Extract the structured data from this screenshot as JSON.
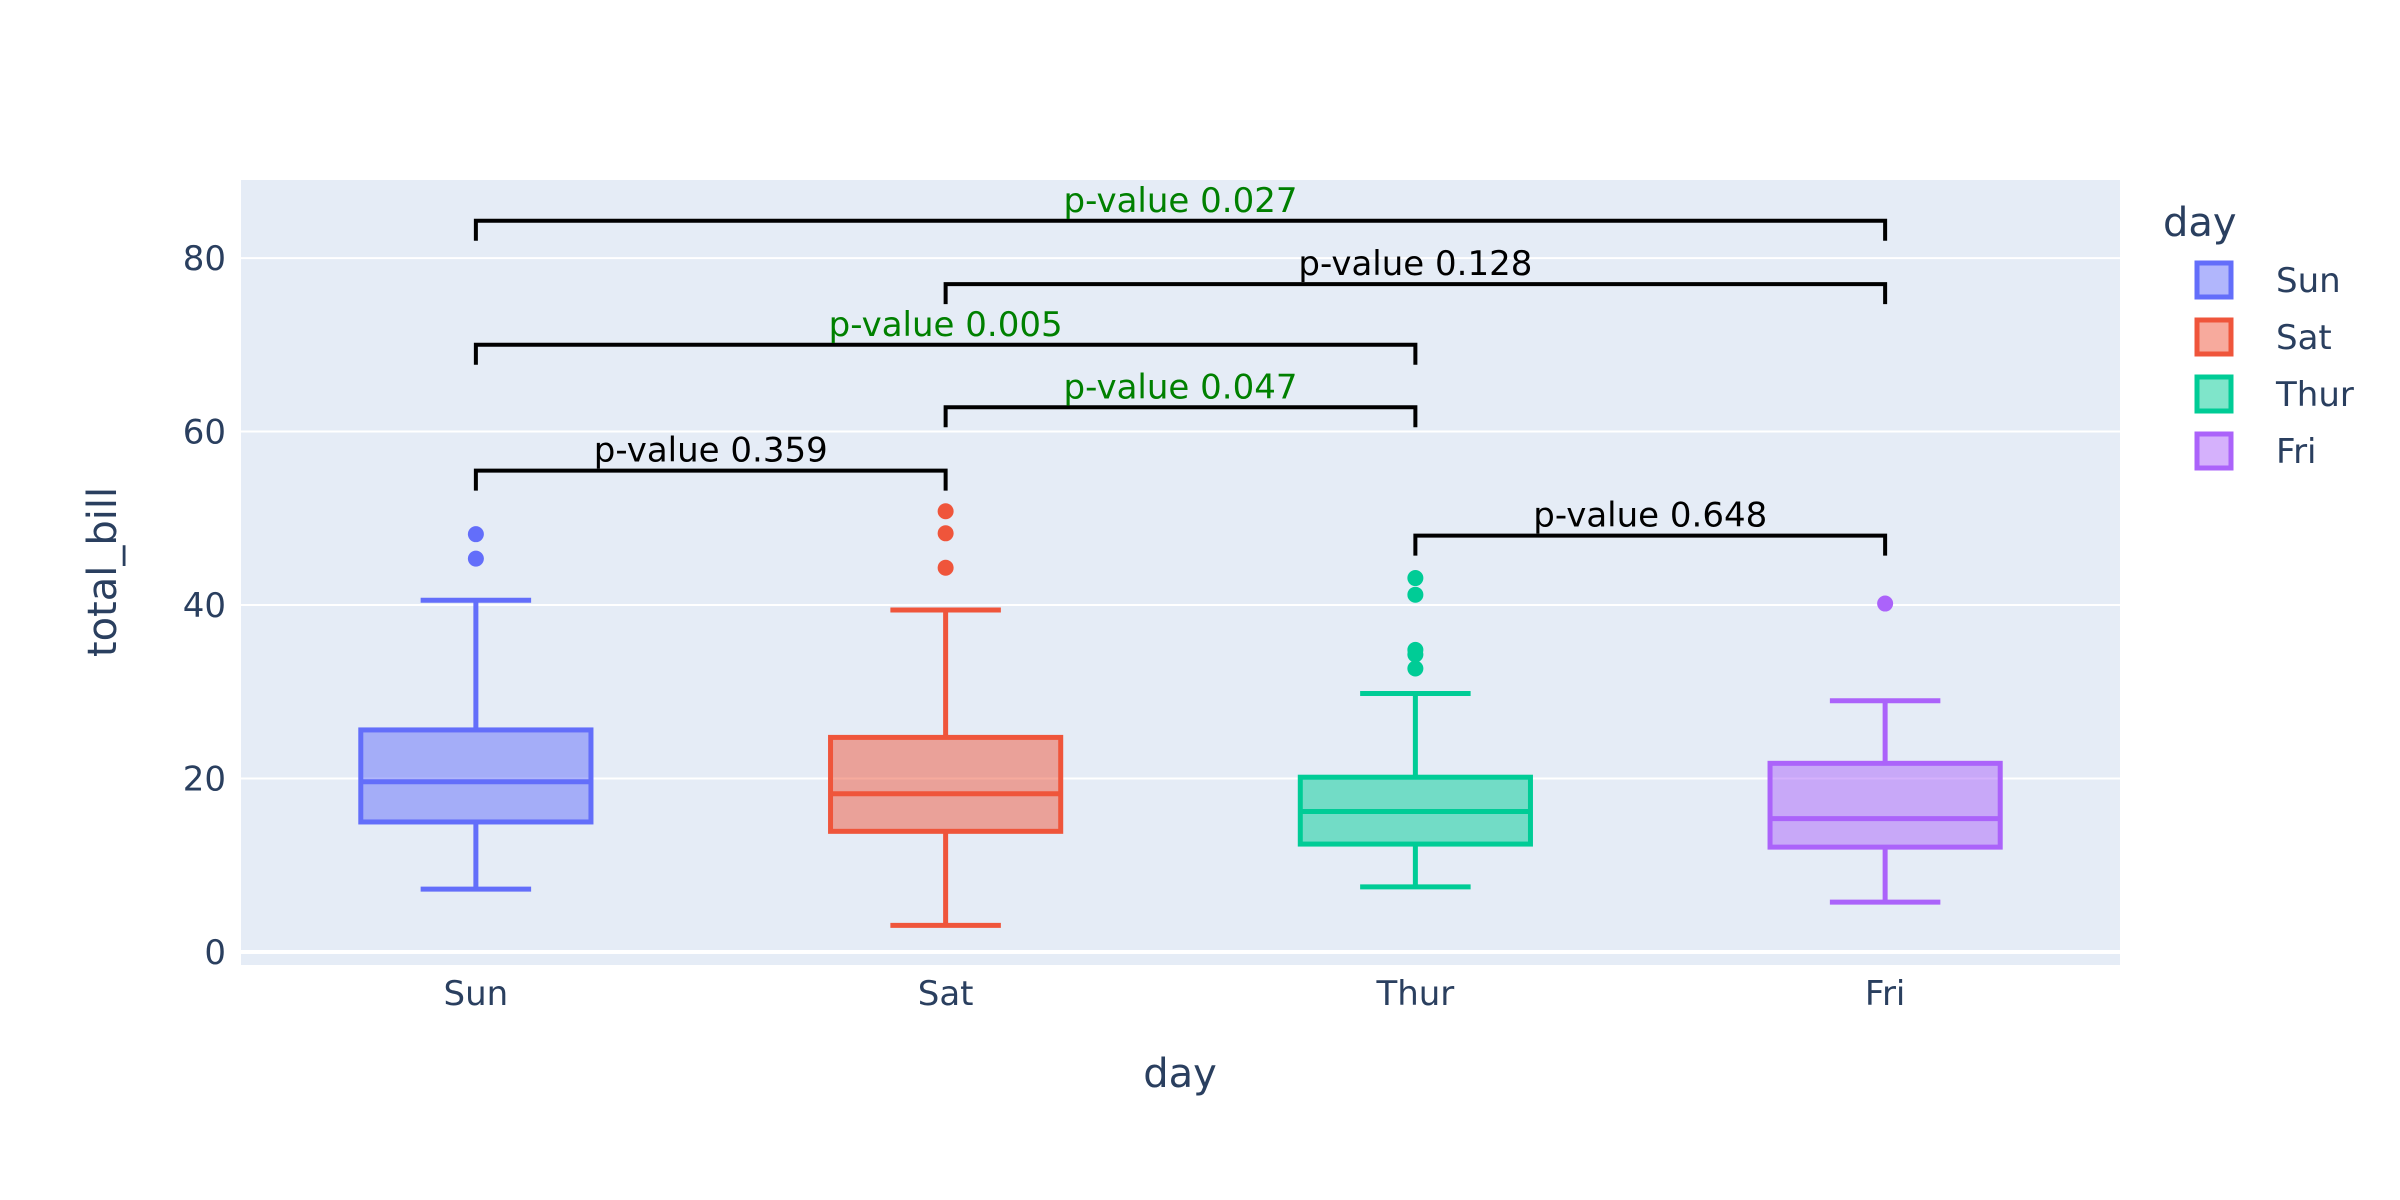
{
  "chart_data": {
    "type": "box",
    "xlabel": "day",
    "ylabel": "total_bill",
    "ylim": [
      -1.5,
      89
    ],
    "yticks": [
      0,
      20,
      40,
      60,
      80
    ],
    "grid": true,
    "legend": {
      "title": "day",
      "placement": "right"
    },
    "categories": [
      "Sun",
      "Sat",
      "Thur",
      "Fri"
    ],
    "series": [
      {
        "name": "Sun",
        "color": "#636efa",
        "min": 7.25,
        "q1": 14.99,
        "median": 19.63,
        "q3": 25.6,
        "max": 40.55,
        "outliers": [
          45.35,
          48.17
        ]
      },
      {
        "name": "Sat",
        "color": "#ef553b",
        "min": 3.07,
        "q1": 13.91,
        "median": 18.24,
        "q3": 24.74,
        "max": 39.42,
        "outliers": [
          44.3,
          48.27,
          50.81
        ]
      },
      {
        "name": "Thur",
        "color": "#00cc96",
        "min": 7.51,
        "q1": 12.44,
        "median": 16.2,
        "q3": 20.15,
        "max": 29.8,
        "outliers": [
          32.68,
          34.3,
          34.83,
          41.19,
          43.11
        ]
      },
      {
        "name": "Fri",
        "color": "#ab63fa",
        "min": 5.75,
        "q1": 12.09,
        "median": 15.38,
        "q3": 21.75,
        "max": 28.97,
        "outliers": [
          40.17
        ]
      }
    ],
    "annotations": [
      {
        "from": "Sun",
        "to": "Sat",
        "level": 55.5,
        "text": "p-value 0.359",
        "color": "#000000"
      },
      {
        "from": "Thur",
        "to": "Fri",
        "level": 48,
        "text": "p-value 0.648",
        "color": "#000000"
      },
      {
        "from": "Sat",
        "to": "Thur",
        "level": 62.8,
        "text": "p-value 0.047",
        "color": "#008000"
      },
      {
        "from": "Sun",
        "to": "Thur",
        "level": 70,
        "text": "p-value 0.005",
        "color": "#008000"
      },
      {
        "from": "Sat",
        "to": "Fri",
        "level": 77,
        "text": "p-value 0.128",
        "color": "#000000"
      },
      {
        "from": "Sun",
        "to": "Fri",
        "level": 84.3,
        "text": "p-value 0.027",
        "color": "#008000"
      }
    ]
  }
}
